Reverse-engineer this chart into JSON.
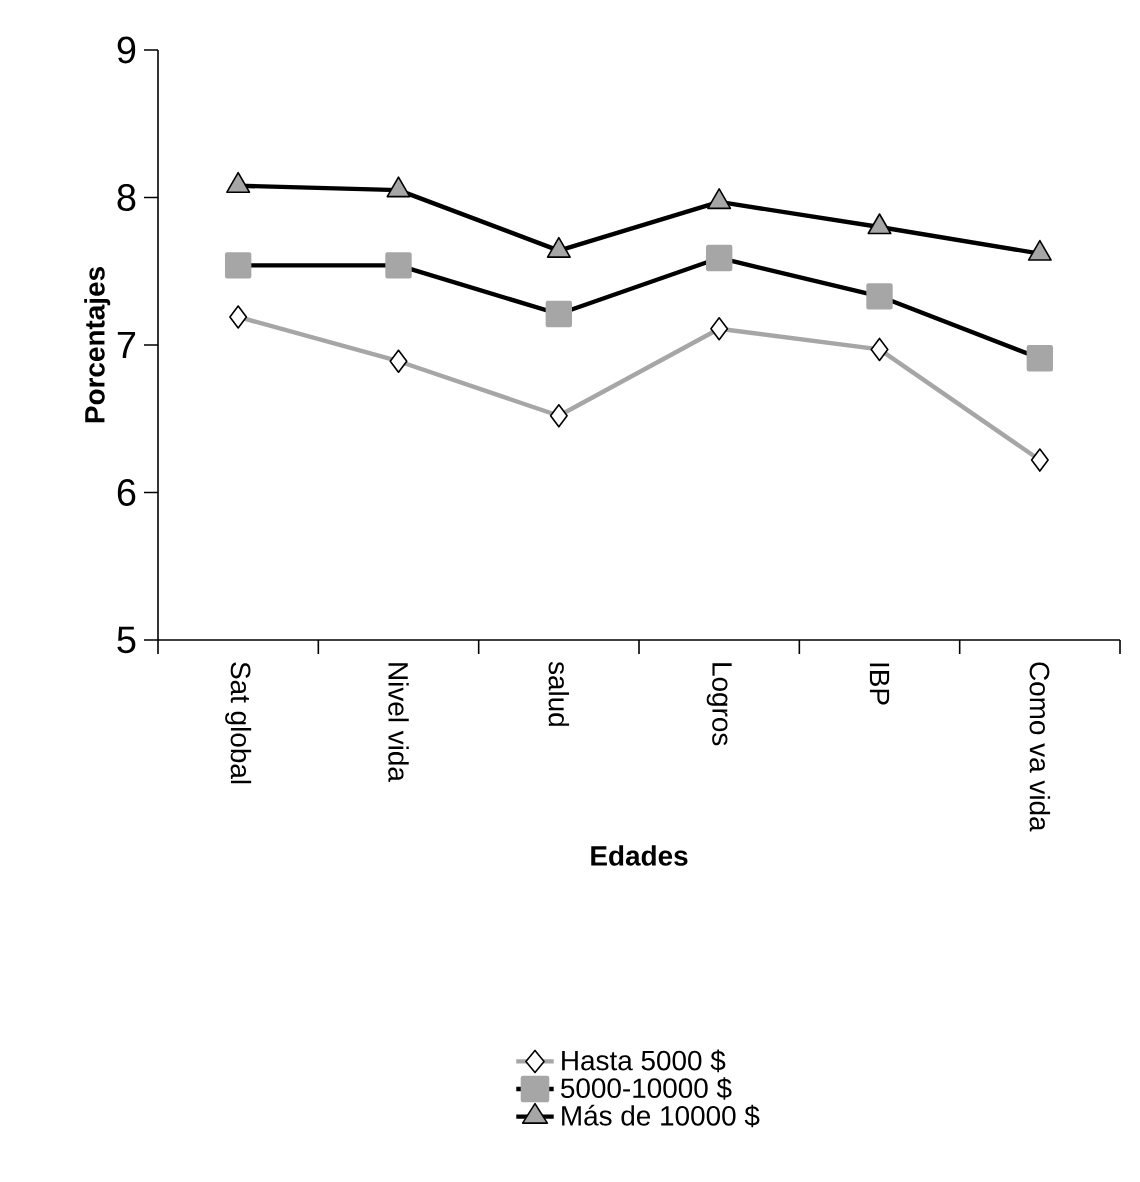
{
  "chart_data": {
    "type": "line",
    "xlabel": "Edades",
    "ylabel": "Porcentajes",
    "categories": [
      "Sat global",
      "Nivel vida",
      "salud",
      "Logros",
      "IBP",
      "Como va vida"
    ],
    "series": [
      {
        "name": "Hasta 5000 $",
        "color": "#a6a6a6",
        "marker": "diamond",
        "values": [
          7.19,
          6.89,
          6.52,
          7.11,
          6.97,
          6.22
        ]
      },
      {
        "name": "5000-10000 $",
        "color": "#000000",
        "marker": "square",
        "values": [
          7.54,
          7.54,
          7.21,
          7.59,
          7.33,
          6.91
        ]
      },
      {
        "name": "Más de 10000 $",
        "color": "#000000",
        "marker": "triangle",
        "values": [
          8.08,
          8.05,
          7.64,
          7.97,
          7.8,
          7.62
        ]
      }
    ],
    "ylim": [
      5,
      9
    ],
    "yticks": [
      5,
      6,
      7,
      8,
      9
    ],
    "legend": "bottom",
    "grid": false
  }
}
